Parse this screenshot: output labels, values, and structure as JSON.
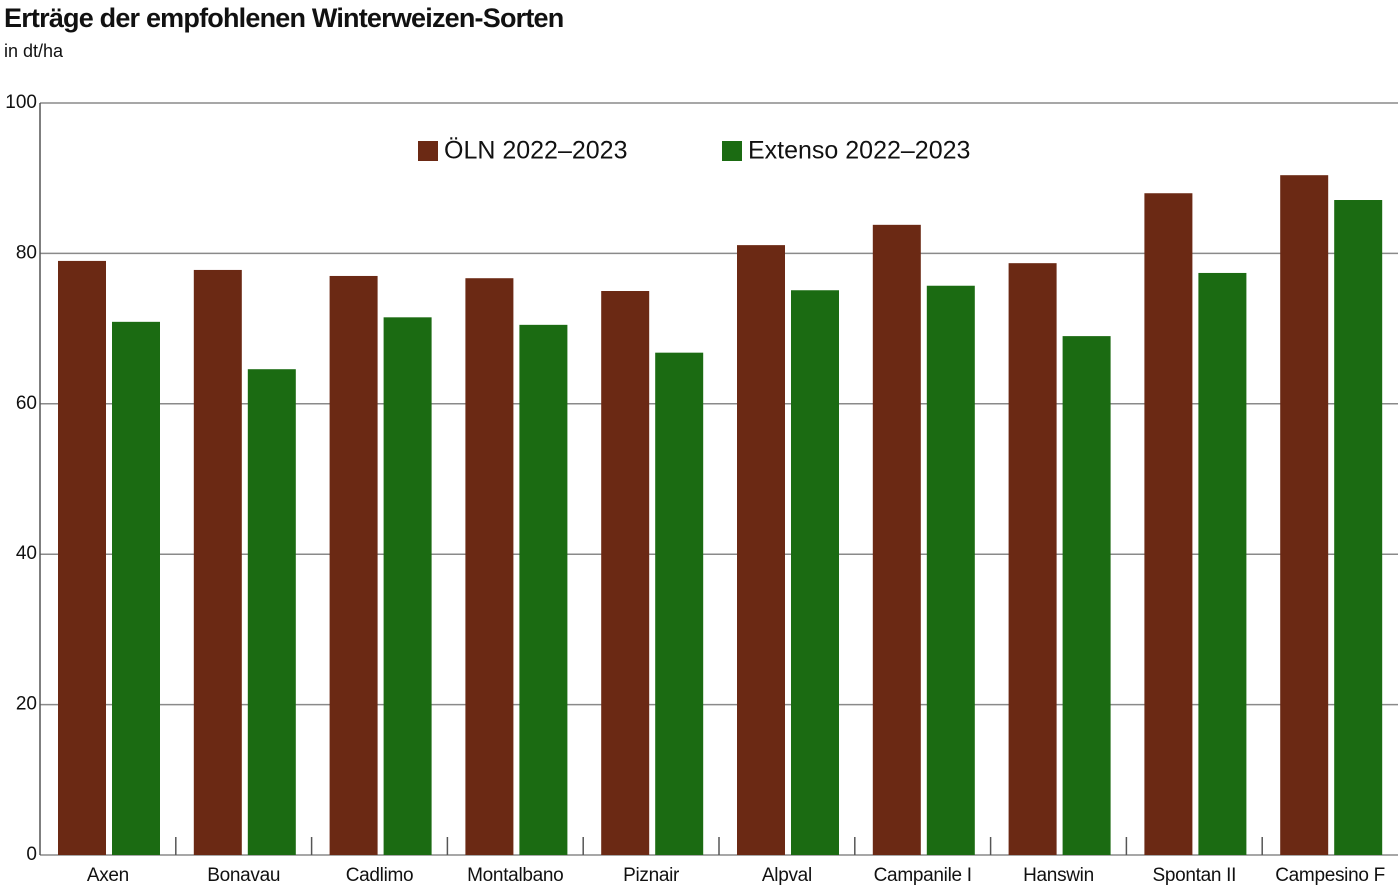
{
  "chart_data": {
    "type": "bar",
    "title": "Erträge der empfohlenen Winterweizen-Sorten",
    "subtitle": "in dt/ha",
    "categories": [
      "Axen",
      "Bonavau",
      "Cadlimo",
      "Montalbano",
      "Piznair",
      "Alpval",
      "Campanile I",
      "Hanswin",
      "Spontan II",
      "Campesino F"
    ],
    "series": [
      {
        "name": "ÖLN 2022–2023",
        "color": "#6b2914",
        "values": [
          79.0,
          77.8,
          77.0,
          76.7,
          75.0,
          81.1,
          83.8,
          78.7,
          88.0,
          90.4
        ]
      },
      {
        "name": "Extenso 2022–2023",
        "color": "#1b6b12",
        "values": [
          70.9,
          64.6,
          71.5,
          70.5,
          66.8,
          75.1,
          75.7,
          69.0,
          77.4,
          87.1
        ]
      }
    ],
    "ylim": [
      0,
      100
    ],
    "yticks": [
      0,
      20,
      40,
      60,
      80,
      100
    ],
    "grid": true,
    "legend": "top"
  }
}
